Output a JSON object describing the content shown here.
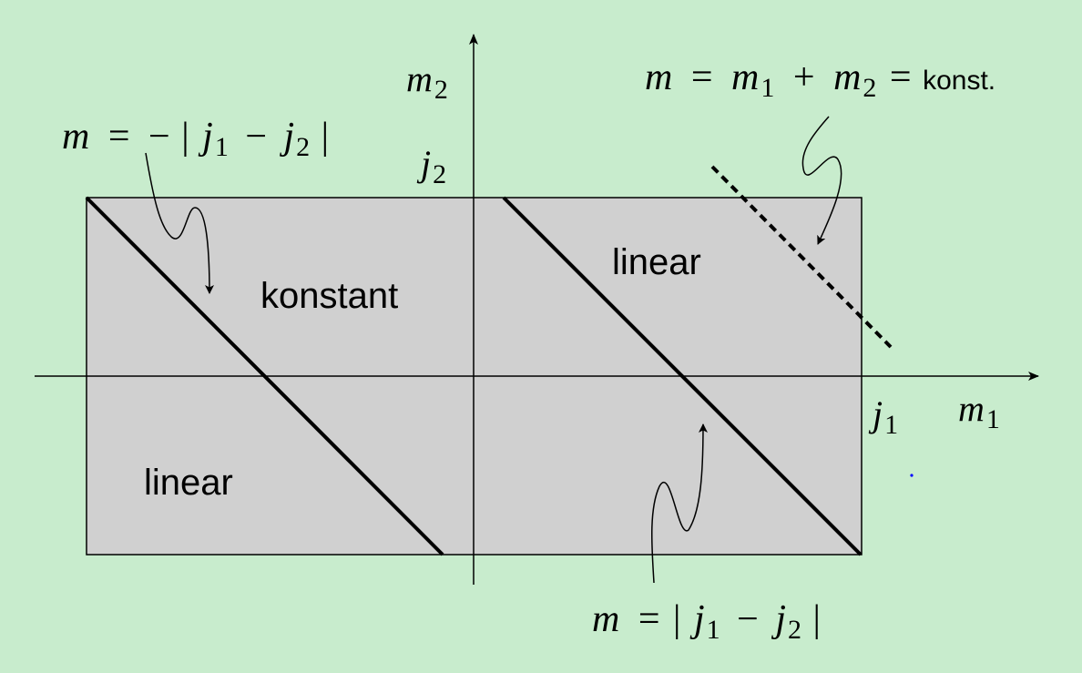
{
  "colors": {
    "background": "#c8eccd",
    "rectangle_fill": "#d0d0d0",
    "line": "#000000",
    "dot": "#0000ff"
  },
  "axes": {
    "horizontal": {
      "var": "m",
      "sub": "1"
    },
    "vertical": {
      "var": "m",
      "sub": "2"
    },
    "corner_x": {
      "var": "j",
      "sub": "1"
    },
    "corner_y": {
      "var": "j",
      "sub": "2"
    }
  },
  "regions": {
    "left_upper": "konstant",
    "left_lower": "linear",
    "right_upper": "linear"
  },
  "annotations": {
    "diag_left": {
      "lhs": "m",
      "eq": "=",
      "minus": "−",
      "bar_open": "|",
      "j1": "j",
      "j1_sub": "1",
      "op": "−",
      "j2": "j",
      "j2_sub": "2",
      "bar_close": "|"
    },
    "diag_right": {
      "lhs": "m",
      "eq": "=",
      "bar_open": "|",
      "j1": "j",
      "j1_sub": "1",
      "op": "−",
      "j2": "j",
      "j2_sub": "2",
      "bar_close": "|"
    },
    "dashed_line": {
      "lhs": "m",
      "eq": "=",
      "m1": "m",
      "m1_sub": "1",
      "plus": "+",
      "m2": "m",
      "m2_sub": "2",
      "eq2": "=",
      "suffix": "konst."
    }
  }
}
